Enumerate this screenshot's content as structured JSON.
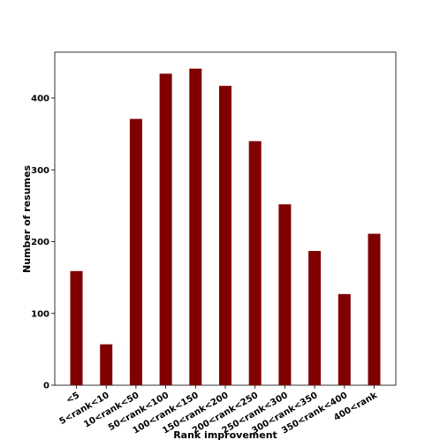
{
  "chart_data": {
    "type": "bar",
    "title": "",
    "xlabel": "Rank improvement",
    "ylabel": "Number of resumes",
    "categories": [
      "<5",
      "5<rank<10",
      "10<rank<50",
      "50<rank<100",
      "100<rank<150",
      "150<rank<200",
      "200<rank<250",
      "250<rank<300",
      "300<rank<350",
      "350<rank<400",
      "400<rank"
    ],
    "values": [
      159,
      57,
      371,
      434,
      441,
      417,
      340,
      252,
      187,
      127,
      211
    ],
    "ylim": [
      0,
      464
    ],
    "yticks": [
      0,
      100,
      200,
      300,
      400
    ],
    "bar_color": "#800000",
    "grid": false,
    "legend": "none"
  }
}
